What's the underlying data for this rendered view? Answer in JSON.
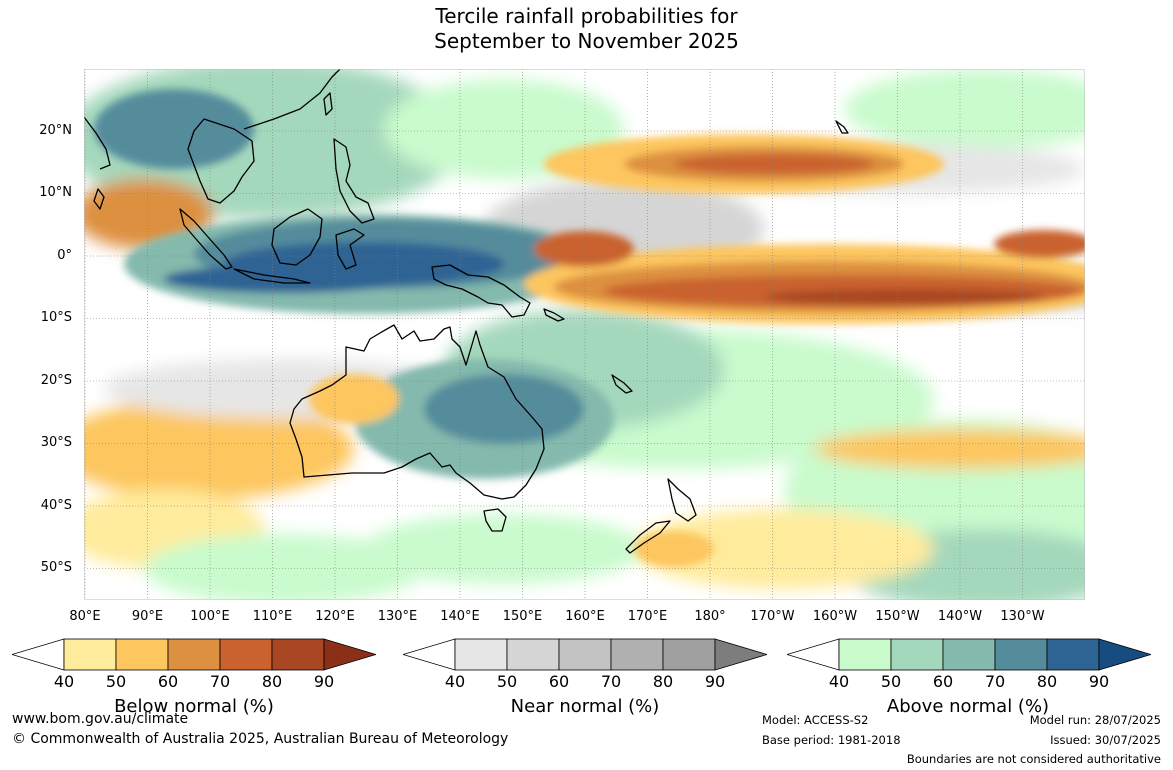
{
  "title": {
    "line1": "Tercile rainfall probabilities for",
    "line2": "September to November 2025"
  },
  "map": {
    "lat_labels": [
      "20°N",
      "10°N",
      "0°",
      "10°S",
      "20°S",
      "30°S",
      "40°S",
      "50°S"
    ],
    "lon_labels": [
      "80°E",
      "90°E",
      "100°E",
      "110°E",
      "120°E",
      "130°E",
      "140°E",
      "150°E",
      "160°E",
      "170°E",
      "180°",
      "170°W",
      "160°W",
      "150°W",
      "140°W",
      "130°W"
    ],
    "colors": {
      "ocean_background": "#ffffff",
      "coastline": "#000000",
      "gridline": "#808080"
    }
  },
  "legends": [
    {
      "label": "Below normal (%)",
      "ticks": [
        "40",
        "50",
        "60",
        "70",
        "80",
        "90"
      ],
      "colors": [
        "#ffffff",
        "#ffeb9c",
        "#fdc65e",
        "#dd9040",
        "#c9622f",
        "#a94722",
        "#8c2f18"
      ]
    },
    {
      "label": "Near normal (%)",
      "ticks": [
        "40",
        "50",
        "60",
        "70",
        "80",
        "90"
      ],
      "colors": [
        "#ffffff",
        "#e6e6e6",
        "#d5d5d5",
        "#c3c3c3",
        "#b0b0b0",
        "#a0a0a0",
        "#7d7d7d"
      ]
    },
    {
      "label": "Above normal (%)",
      "ticks": [
        "40",
        "50",
        "60",
        "70",
        "80",
        "90"
      ],
      "colors": [
        "#ffffff",
        "#c9fbcd",
        "#a4d8bc",
        "#84b9ad",
        "#548c9c",
        "#2e6494",
        "#174c82"
      ]
    }
  ],
  "footer": {
    "website": "www.bom.gov.au/climate",
    "copyright": "© Commonwealth of Australia 2025, Australian Bureau of Meteorology",
    "model": "Model: ACCESS-S2",
    "base_period": "Base period: 1981-2018",
    "model_run": "Model run: 28/07/2025",
    "issued": "Issued: 30/07/2025",
    "disclaimer": "Boundaries are not considered authoritative"
  }
}
